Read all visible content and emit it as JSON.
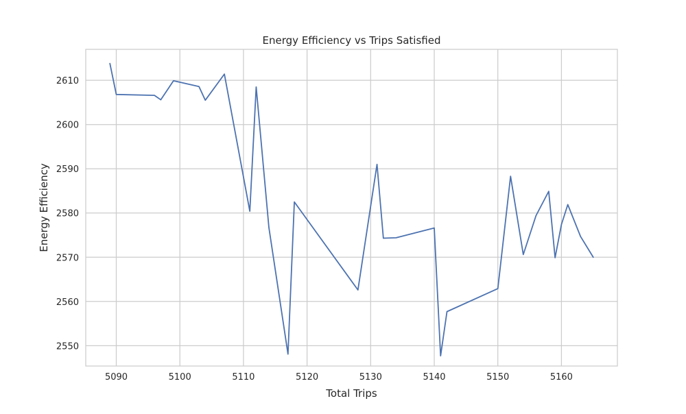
{
  "chart_data": {
    "type": "line",
    "title": "Energy Efficiency vs Trips Satisfied",
    "xlabel": "Total Trips",
    "ylabel": "Energy Efficiency",
    "xlim": [
      5085.2,
      5168.8
    ],
    "ylim": [
      2545.4,
      2617.0
    ],
    "xticks": [
      5090,
      5100,
      5110,
      5120,
      5130,
      5140,
      5150,
      5160
    ],
    "yticks": [
      2550,
      2560,
      2570,
      2580,
      2590,
      2600,
      2610
    ],
    "grid": true,
    "legend": false,
    "series": [
      {
        "color": "#4c72b0",
        "x": [
          5089,
          5090,
          5096,
          5097,
          5099,
          5103,
          5104,
          5107,
          5111,
          5112,
          5114,
          5117,
          5118,
          5128,
          5131,
          5132,
          5134,
          5140,
          5141,
          5142,
          5150,
          5152,
          5154,
          5156,
          5158,
          5159,
          5160,
          5161,
          5163,
          5165
        ],
        "y": [
          2613.8,
          2606.8,
          2606.6,
          2605.6,
          2609.9,
          2608.6,
          2605.5,
          2611.4,
          2580.4,
          2608.5,
          2576.7,
          2548.1,
          2582.5,
          2562.6,
          2591.0,
          2574.3,
          2574.4,
          2576.6,
          2547.7,
          2557.7,
          2562.9,
          2588.3,
          2570.6,
          2579.4,
          2584.9,
          2569.9,
          2577.4,
          2581.9,
          2574.7,
          2570.0
        ]
      }
    ]
  }
}
